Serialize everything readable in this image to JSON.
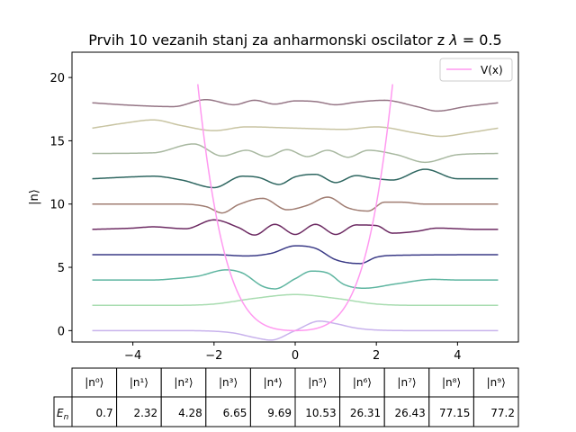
{
  "chart_data": {
    "type": "line",
    "title": "Prvih 10 vezanih stanj za anharmonski oscilator z λ = 0.5",
    "title_prefix": "Prvih 10 vezanih stanj za anharmonski oscilator z ",
    "title_symbol": "λ",
    "title_suffix": " = 0.5",
    "xlabel": "",
    "ylabel": "|n⟩",
    "xlim": [
      -5.5,
      5.5
    ],
    "ylim": [
      -0.9,
      22
    ],
    "x_ticks": [
      -4,
      -2,
      0,
      2,
      4
    ],
    "x_tick_labels": [
      "−4",
      "−2",
      "0",
      "2",
      "4"
    ],
    "y_ticks": [
      0,
      5,
      10,
      15,
      20
    ],
    "y_tick_labels": [
      "0",
      "5",
      "10",
      "15",
      "20"
    ],
    "grid": false,
    "legend": {
      "placement": "top-right",
      "entries": [
        {
          "label": "V(x)",
          "color": "#ff99f0"
        }
      ]
    },
    "potential": {
      "name": "V(x)",
      "formula": "x^2/2 + 0.5*x^4",
      "color": "#ff99f0",
      "x_range": [
        -2.4,
        2.4
      ]
    },
    "states": [
      {
        "index": 0,
        "offset": 0,
        "color": "#c8b2ec",
        "x": [
          -5,
          -3,
          -2,
          -1.5,
          -1,
          -0.6,
          0,
          0.6,
          1,
          1.5,
          2,
          3,
          5
        ],
        "y": [
          0,
          0,
          -0.05,
          -0.2,
          -0.55,
          -0.75,
          0,
          0.75,
          0.55,
          0.2,
          0.05,
          0,
          0
        ]
      },
      {
        "index": 1,
        "offset": 2,
        "color": "#a8dcb0",
        "x": [
          -5,
          -3,
          -2,
          -1,
          0,
          1,
          2,
          3,
          5
        ],
        "y": [
          0,
          0,
          0.1,
          0.55,
          0.85,
          0.55,
          0.1,
          0,
          0
        ]
      },
      {
        "index": 2,
        "offset": 4,
        "color": "#5eb5a0",
        "x": [
          -5,
          -3.5,
          -3,
          -2.4,
          -1.7,
          -1.3,
          -0.8,
          -0.5,
          0,
          0.4,
          0.8,
          1.2,
          1.7,
          2.5,
          3.4,
          4,
          5
        ],
        "y": [
          0,
          0,
          0.1,
          0.3,
          0.8,
          0.55,
          -0.5,
          -0.7,
          0.1,
          0.7,
          0.55,
          -0.35,
          -0.65,
          -0.3,
          0.05,
          0,
          0
        ]
      },
      {
        "index": 3,
        "offset": 6,
        "color": "#3a3a86",
        "x": [
          -5,
          -2,
          -1.2,
          -0.6,
          0,
          0.5,
          1,
          1.6,
          2,
          2.5,
          5
        ],
        "y": [
          0,
          0,
          -0.1,
          0.1,
          0.7,
          0.5,
          -0.4,
          -0.7,
          -0.2,
          -0.05,
          0
        ]
      },
      {
        "index": 4,
        "offset": 8,
        "color": "#6c2a62",
        "x": [
          -5,
          -4,
          -3.5,
          -2.7,
          -2,
          -1.4,
          -1,
          -0.5,
          0,
          0.5,
          1,
          1.5,
          2,
          2.4,
          3,
          3.5,
          4.5,
          5
        ],
        "y": [
          0,
          0.1,
          0.2,
          0.05,
          0.75,
          0.15,
          -0.45,
          0.4,
          -0.4,
          0.4,
          -0.4,
          0.35,
          0.3,
          -0.3,
          -0.15,
          0.1,
          0,
          0
        ]
      },
      {
        "index": 5,
        "offset": 10,
        "color": "#a07d72",
        "x": [
          -5,
          -3,
          -2.2,
          -1.8,
          -1.4,
          -0.8,
          -0.2,
          0.3,
          0.8,
          1.3,
          1.8,
          2.2,
          2.6,
          3.2,
          4,
          5
        ],
        "y": [
          0,
          0,
          -0.2,
          -0.7,
          -0.05,
          0.45,
          -0.45,
          -0.1,
          0.55,
          -0.3,
          -0.55,
          0.15,
          0.15,
          0,
          0,
          0
        ]
      },
      {
        "index": 6,
        "offset": 12,
        "color": "#2e6660",
        "x": [
          -5,
          -4,
          -3.5,
          -2.8,
          -2,
          -1.3,
          -0.9,
          -0.4,
          0,
          0.5,
          1,
          1.5,
          1.9,
          2.4,
          3.2,
          4,
          5
        ],
        "y": [
          0,
          0.15,
          0.2,
          -0.1,
          -0.7,
          0.2,
          0.1,
          -0.45,
          0.15,
          0.35,
          -0.3,
          0.25,
          0.05,
          -0.1,
          0.75,
          0,
          0
        ]
      },
      {
        "index": 7,
        "offset": 14,
        "color": "#a8b8a0",
        "x": [
          -5,
          -3.5,
          -2.5,
          -1.8,
          -1.2,
          -0.7,
          -0.2,
          0.3,
          0.8,
          1.3,
          1.8,
          2.5,
          3.2,
          4,
          5
        ],
        "y": [
          0,
          0.05,
          0.75,
          -0.2,
          0.25,
          -0.25,
          0.3,
          -0.25,
          0.25,
          -0.3,
          0.25,
          -0.1,
          -0.7,
          -0.1,
          0
        ]
      },
      {
        "index": 8,
        "offset": 16,
        "color": "#c8c4a2",
        "x": [
          -5,
          -4.2,
          -3.5,
          -2.8,
          -2,
          -1.2,
          0,
          1.2,
          2,
          3,
          3.6,
          4.2,
          5
        ],
        "y": [
          0,
          0.4,
          0.65,
          0.2,
          -0.2,
          0.1,
          0,
          -0.1,
          0.1,
          -0.4,
          -0.65,
          -0.4,
          0
        ]
      },
      {
        "index": 9,
        "offset": 18,
        "color": "#957585",
        "x": [
          -5,
          -4,
          -3,
          -2.2,
          -1.5,
          -1,
          -0.5,
          0,
          0.5,
          1,
          1.5,
          2.2,
          3,
          3.5,
          4.2,
          5
        ],
        "y": [
          0,
          -0.2,
          -0.3,
          0.25,
          -0.15,
          0.2,
          -0.1,
          0.15,
          0.1,
          -0.15,
          0.05,
          0.2,
          -0.3,
          -0.65,
          -0.3,
          0
        ]
      }
    ],
    "table": {
      "row_header": "E_n",
      "column_headers": [
        "|n⁰⟩",
        "|n¹⟩",
        "|n²⟩",
        "|n³⟩",
        "|n⁴⟩",
        "|n⁵⟩",
        "|n⁶⟩",
        "|n⁷⟩",
        "|n⁸⟩",
        "|n⁹⟩"
      ],
      "values": [
        "0.7",
        "2.32",
        "4.28",
        "6.65",
        "9.69",
        "10.53",
        "26.31",
        "26.43",
        "77.15",
        "77.2"
      ]
    }
  }
}
